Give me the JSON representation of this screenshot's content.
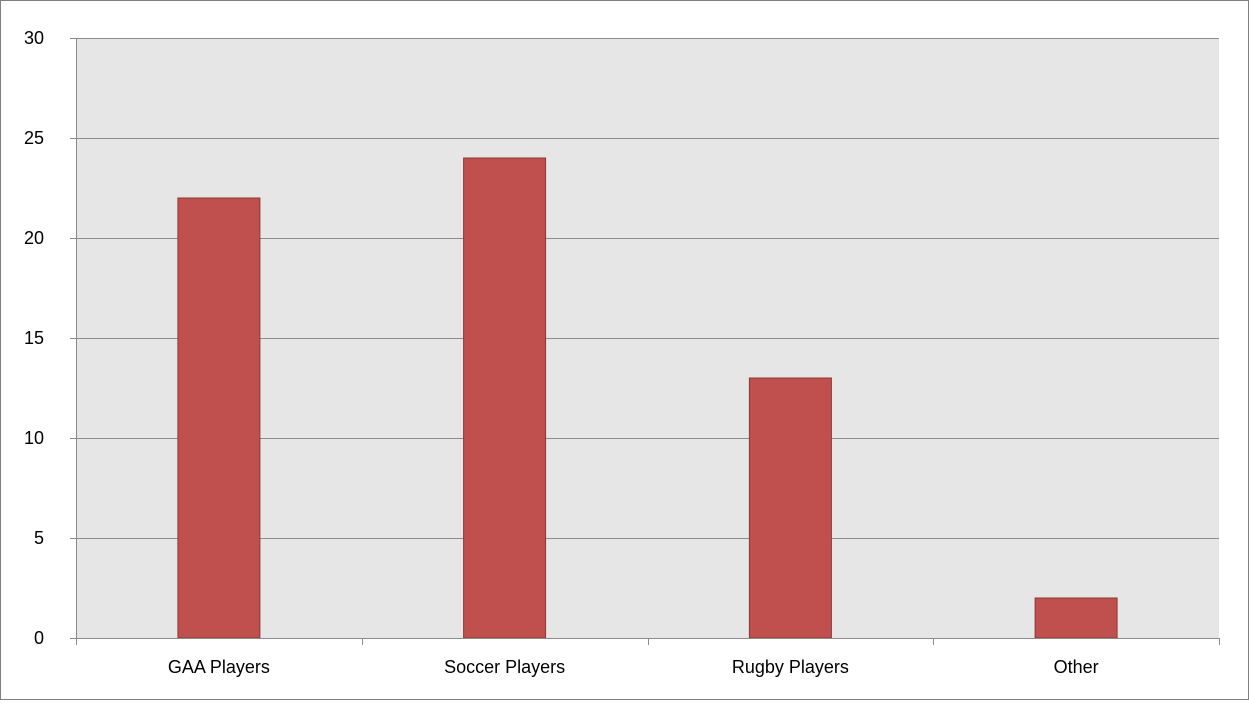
{
  "chart_data": {
    "type": "bar",
    "categories": [
      "GAA Players",
      "Soccer Players",
      "Rugby Players",
      "Other"
    ],
    "values": [
      22,
      24,
      13,
      2
    ],
    "title": "",
    "xlabel": "",
    "ylabel": "",
    "ylim": [
      0,
      30
    ],
    "yticks": [
      0,
      5,
      10,
      15,
      20,
      25,
      30
    ],
    "grid": true,
    "legend": "none",
    "colors": {
      "bar_fill": "#c0504d",
      "bar_stroke": "#8c3836",
      "plot_background": "#e6e6e6",
      "gridline": "#8c8c8c",
      "axis": "#8c8c8c"
    }
  }
}
